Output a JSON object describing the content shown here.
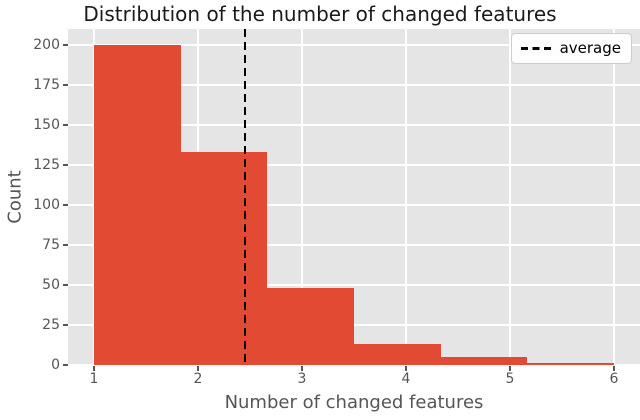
{
  "title": "Distribution of the number of changed features",
  "xlabel": "Number of changed features",
  "ylabel": "Count",
  "legend": {
    "items": [
      {
        "label": "average",
        "line_color": "#000000",
        "line_style": "dashed"
      }
    ]
  },
  "chart_data": {
    "type": "bar",
    "subtype": "histogram",
    "title": "Distribution of the number of changed features",
    "xlabel": "Number of changed features",
    "ylabel": "Count",
    "bin_edges": [
      1.0,
      1.8333,
      2.6667,
      3.5,
      4.3333,
      5.1667,
      6.0
    ],
    "counts": [
      200,
      133,
      48,
      13,
      5,
      1
    ],
    "average_x": 2.45,
    "xlim": [
      0.75,
      6.25
    ],
    "ylim": [
      0,
      210
    ],
    "xticks": [
      1,
      2,
      3,
      4,
      5,
      6
    ],
    "yticks": [
      0,
      25,
      50,
      75,
      100,
      125,
      150,
      175,
      200
    ],
    "grid": true,
    "legend_position": "upper right",
    "colors": {
      "bar": "#E24A33",
      "plot_bg": "#E5E5E5",
      "grid": "#FFFFFF",
      "tick_label": "#555555",
      "axis_label": "#555555",
      "title": "#1A1A1A",
      "average_line": "#000000",
      "figure_bg": "#FFFFFF"
    }
  }
}
